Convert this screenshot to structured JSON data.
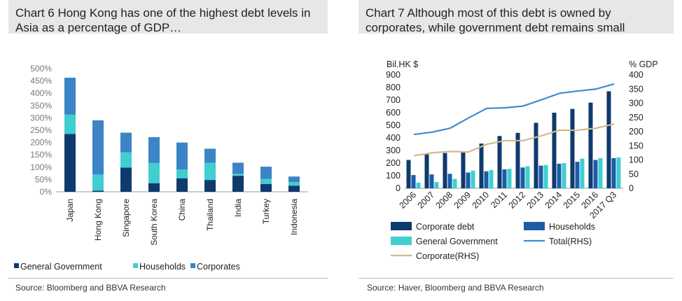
{
  "chart6": {
    "title": "Chart 6 Hong Kong has one of the highest debt levels in Asia as a percentage of GDP…",
    "source": "Source: Bloomberg and BBVA Research"
  },
  "chart7": {
    "title": "Chart 7 Although most of this debt is owned by corporates, while government debt remains small",
    "source": "Source: Haver, Bloomberg and BBVA Research"
  },
  "colors": {
    "general_government": "#0e3a6e",
    "households": "#3fcfd0",
    "corporates": "#3c84c6",
    "corporate_debt": "#0e3a6e",
    "households_7": "#1a5ca8",
    "total_rhs": "#3c8ad3",
    "corporate_rhs": "#d3b98a"
  },
  "chart_data": [
    {
      "type": "bar",
      "stacked": true,
      "categories": [
        "Japan",
        "Hong Kong",
        "Singapore",
        "South Korea",
        "China",
        "Thailand",
        "India",
        "Turkey",
        "Indonesia"
      ],
      "series": [
        {
          "name": "General Government",
          "values": [
            235,
            5,
            98,
            35,
            55,
            48,
            65,
            32,
            25
          ]
        },
        {
          "name": "Households",
          "values": [
            78,
            65,
            62,
            82,
            35,
            70,
            8,
            20,
            15
          ]
        },
        {
          "name": "Corporates",
          "values": [
            150,
            220,
            80,
            105,
            110,
            57,
            45,
            50,
            22
          ]
        }
      ],
      "yticks": [
        "0%",
        "50%",
        "100%",
        "150%",
        "200%",
        "250%",
        "300%",
        "350%",
        "400%",
        "450%",
        "500%"
      ],
      "ylim": [
        0,
        500
      ],
      "legend": "bottom"
    },
    {
      "type": "bar",
      "categories": [
        "2006",
        "2007",
        "2008",
        "2009",
        "2010",
        "2011",
        "2012",
        "2013",
        "2014",
        "2015",
        "2016",
        "2017 Q3"
      ],
      "ylabel_left": "Bil.HK $",
      "ylabel_right": "% GDP",
      "yticks_left": [
        "0",
        "100",
        "200",
        "300",
        "400",
        "500",
        "600",
        "700",
        "800",
        "900"
      ],
      "yticks_right": [
        "0",
        "50",
        "100",
        "150",
        "200",
        "250",
        "300",
        "350",
        "400"
      ],
      "ylim_left": [
        0,
        900
      ],
      "ylim_right": [
        0,
        400
      ],
      "series": [
        {
          "name": "Corporate debt",
          "type": "bar",
          "axis": "left",
          "values": [
            225,
            270,
            280,
            285,
            355,
            415,
            440,
            520,
            600,
            630,
            680,
            770
          ]
        },
        {
          "name": "Households",
          "type": "bar",
          "axis": "left",
          "values": [
            105,
            110,
            115,
            125,
            135,
            150,
            165,
            180,
            195,
            210,
            225,
            240
          ]
        },
        {
          "name": "General Government",
          "type": "bar",
          "axis": "left",
          "values": [
            45,
            50,
            75,
            140,
            145,
            155,
            175,
            185,
            200,
            235,
            240,
            245
          ]
        },
        {
          "name": "Total(RHS)",
          "type": "line",
          "axis": "right",
          "values": [
            190,
            198,
            212,
            248,
            282,
            284,
            290,
            312,
            335,
            343,
            350,
            368
          ]
        },
        {
          "name": "Corporate(RHS)",
          "type": "line",
          "axis": "right",
          "values": [
            115,
            125,
            130,
            128,
            155,
            168,
            168,
            185,
            205,
            205,
            212,
            227
          ]
        }
      ],
      "legend": "bottom"
    }
  ]
}
